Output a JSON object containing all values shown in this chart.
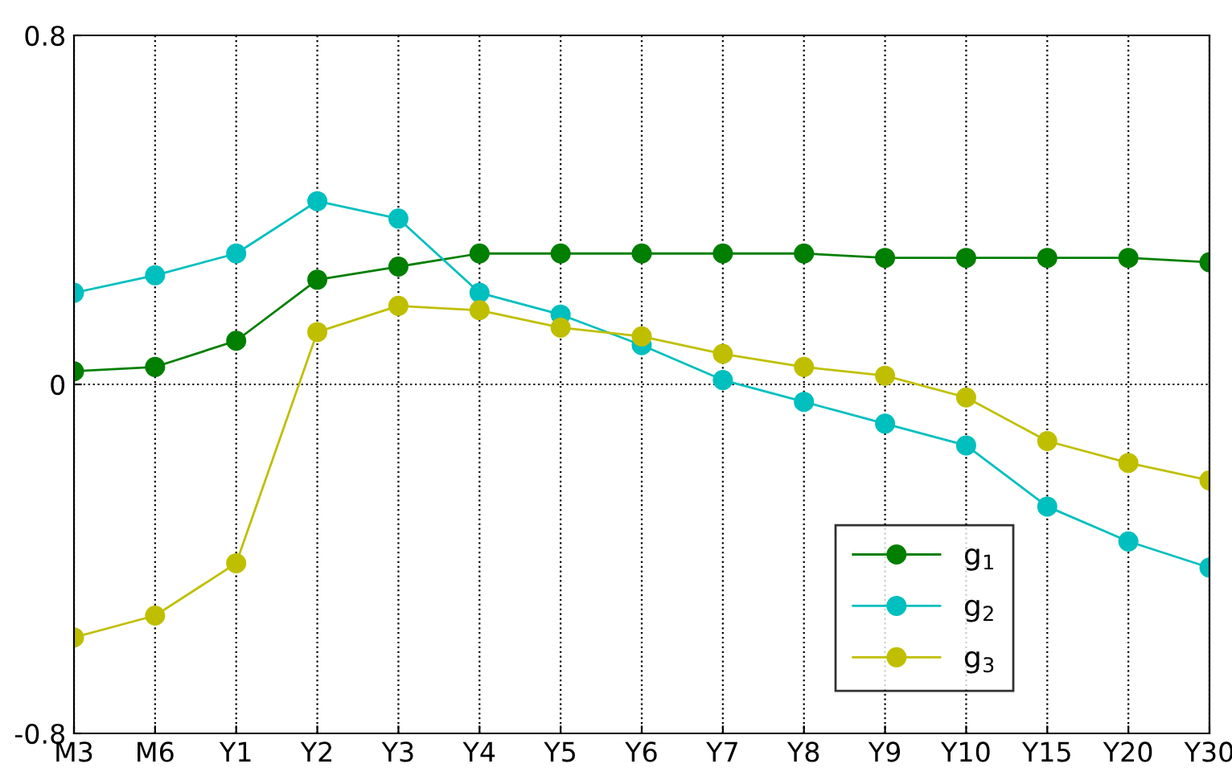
{
  "chart_data": {
    "type": "line",
    "categories": [
      "M3",
      "M6",
      "Y1",
      "Y2",
      "Y3",
      "Y4",
      "Y5",
      "Y6",
      "Y7",
      "Y8",
      "Y9",
      "Y10",
      "Y15",
      "Y20",
      "Y30"
    ],
    "series": [
      {
        "name": "g$_{1}$",
        "color": "#007f00",
        "values": [
          0.03,
          0.04,
          0.1,
          0.24,
          0.27,
          0.3,
          0.3,
          0.3,
          0.3,
          0.3,
          0.29,
          0.29,
          0.29,
          0.29,
          0.28
        ]
      },
      {
        "name": "g$_{2}$",
        "color": "#00bfbf",
        "values": [
          0.21,
          0.25,
          0.3,
          0.42,
          0.38,
          0.21,
          0.16,
          0.09,
          0.01,
          -0.04,
          -0.09,
          -0.14,
          -0.28,
          -0.36,
          -0.42
        ]
      },
      {
        "name": "g$_{3}$",
        "color": "#bfbf00",
        "values": [
          -0.58,
          -0.53,
          -0.41,
          0.12,
          0.18,
          0.17,
          0.13,
          0.11,
          0.07,
          0.04,
          0.02,
          -0.03,
          -0.13,
          -0.18,
          -0.22
        ]
      }
    ],
    "ylim": [
      -0.8,
      0.8
    ],
    "yticks": [
      -0.8,
      0,
      0.8
    ],
    "grid": true,
    "legend": "bottom right",
    "marker": "circle",
    "line_style": "solid"
  }
}
